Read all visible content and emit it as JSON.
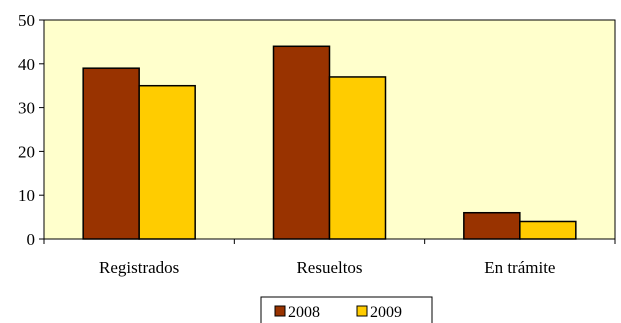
{
  "chart_data": {
    "type": "bar",
    "categories": [
      "Registrados",
      "Resueltos",
      "En trámite"
    ],
    "series": [
      {
        "name": "2008",
        "values": [
          39,
          44,
          6
        ],
        "color": "#993300"
      },
      {
        "name": "2009",
        "values": [
          35,
          37,
          4
        ],
        "color": "#FFCC00"
      }
    ],
    "title": "",
    "xlabel": "",
    "ylabel": "",
    "ylim": [
      0,
      50
    ],
    "yticks": [
      0,
      10,
      20,
      30,
      40,
      50
    ],
    "plot_background": "#FFFFCC",
    "grid": false,
    "legend_position": "bottom"
  }
}
